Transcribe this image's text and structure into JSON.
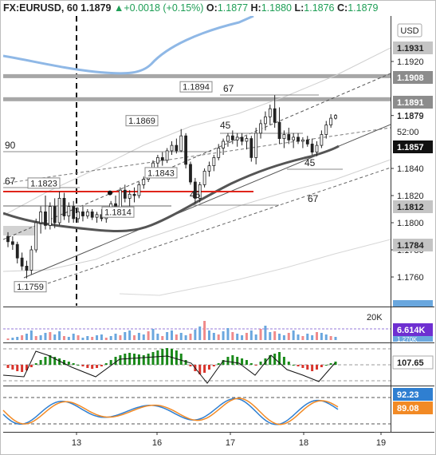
{
  "header": {
    "symbol": "FX:EURUSD, 60",
    "last": "1.1879",
    "change_arrow": "▲",
    "change": "+0.0018 (+0.15%)",
    "o_label": "O:",
    "o": "1.1877",
    "h_label": "H:",
    "h": "1.1880",
    "l_label": "L:",
    "l": "1.1876",
    "c_label": "C:",
    "c": "1.1879"
  },
  "scale_button": "USD",
  "colors": {
    "up": "#26a69a",
    "candle": "#222222",
    "ma_blue": "#8fb8e6",
    "ma_grey": "#555555",
    "red_line": "#e0251b",
    "vol_blue": "#6aa7de",
    "vol_red": "#f08a8a",
    "macd_up": "#1a8a1a",
    "macd_down": "#d8342c",
    "stoch_blue": "#2f7fd1",
    "stoch_orange": "#f28a25"
  },
  "chart_data": {
    "type": "candlestick",
    "symbol": "FX:EURUSD",
    "interval": "60",
    "ylim": [
      1.174,
      1.196
    ],
    "y_ticks": [
      "1.1760",
      "1.1780",
      "1.1800",
      "1.1820",
      "1.1840",
      "1.1879",
      "1.1920"
    ],
    "x_ticks": [
      "13",
      "16",
      "17",
      "18",
      "19"
    ],
    "price_labels": [
      {
        "text": "1.1931",
        "style": "grey"
      },
      {
        "text": "1.1908",
        "style": "dark"
      },
      {
        "text": "1.1891",
        "style": "dark"
      },
      {
        "text": "1.1879",
        "style": "plain"
      },
      {
        "text": "52:00",
        "style": "plain"
      },
      {
        "text": "1.1857",
        "style": "black"
      },
      {
        "text": "1.1812",
        "style": "grey"
      },
      {
        "text": "1.1784",
        "style": "grey"
      }
    ],
    "annotations": [
      {
        "text": "1.1894",
        "x": 226,
        "price": 1.1894
      },
      {
        "text": "1.1869",
        "x": 158,
        "price": 1.1869
      },
      {
        "text": "1.1843",
        "x": 182,
        "price": 1.1843
      },
      {
        "text": "1.1823",
        "x": 35,
        "price": 1.1823
      },
      {
        "text": "1.1814",
        "x": 128,
        "price": 1.1814
      },
      {
        "text": "1.1759",
        "x": 18,
        "price": 1.1759
      }
    ],
    "fib_labels": [
      "90",
      "67",
      "67",
      "45",
      "45",
      "45",
      "67"
    ],
    "horizontal_lines": [
      1.1908,
      1.1891,
      1.1823
    ],
    "candles": [
      [
        1.179,
        1.1793,
        1.1782,
        1.1786
      ],
      [
        1.1786,
        1.179,
        1.178,
        1.1784
      ],
      [
        1.1784,
        1.1786,
        1.177,
        1.1774
      ],
      [
        1.1774,
        1.1778,
        1.1765,
        1.1768
      ],
      [
        1.1768,
        1.1772,
        1.1759,
        1.1765
      ],
      [
        1.1765,
        1.1783,
        1.1762,
        1.178
      ],
      [
        1.178,
        1.1803,
        1.1778,
        1.18
      ],
      [
        1.18,
        1.1812,
        1.1792,
        1.1808
      ],
      [
        1.1808,
        1.182,
        1.1795,
        1.1798
      ],
      [
        1.1798,
        1.1815,
        1.1795,
        1.1812
      ],
      [
        1.1812,
        1.1818,
        1.1796,
        1.18
      ],
      [
        1.18,
        1.1823,
        1.1798,
        1.1818
      ],
      [
        1.1818,
        1.1822,
        1.1802,
        1.1805
      ],
      [
        1.1805,
        1.1815,
        1.18,
        1.1812
      ],
      [
        1.1812,
        1.1816,
        1.18,
        1.1803
      ],
      [
        1.1803,
        1.1811,
        1.18,
        1.1808
      ],
      [
        1.1808,
        1.1812,
        1.1801,
        1.1805
      ],
      [
        1.1805,
        1.181,
        1.1803,
        1.1808
      ],
      [
        1.1808,
        1.181,
        1.1802,
        1.1804
      ],
      [
        1.1804,
        1.1808,
        1.18,
        1.1806
      ],
      [
        1.1806,
        1.181,
        1.1801,
        1.1803
      ],
      [
        1.1803,
        1.1808,
        1.18,
        1.1806
      ],
      [
        1.1806,
        1.1816,
        1.1805,
        1.1814
      ],
      [
        1.1814,
        1.182,
        1.1808,
        1.1811
      ],
      [
        1.1811,
        1.1826,
        1.181,
        1.1824
      ],
      [
        1.1824,
        1.1828,
        1.1815,
        1.1818
      ],
      [
        1.1818,
        1.1824,
        1.1812,
        1.1821
      ],
      [
        1.1821,
        1.1826,
        1.1815,
        1.182
      ],
      [
        1.182,
        1.183,
        1.1818,
        1.1828
      ],
      [
        1.1828,
        1.1834,
        1.1825,
        1.1832
      ],
      [
        1.1832,
        1.184,
        1.183,
        1.1838
      ],
      [
        1.1838,
        1.1846,
        1.1835,
        1.1844
      ],
      [
        1.1844,
        1.185,
        1.184,
        1.1848
      ],
      [
        1.1848,
        1.1852,
        1.1842,
        1.1846
      ],
      [
        1.1846,
        1.1855,
        1.1844,
        1.1853
      ],
      [
        1.1853,
        1.186,
        1.185,
        1.1857
      ],
      [
        1.1857,
        1.1862,
        1.1851,
        1.1853
      ],
      [
        1.1853,
        1.1869,
        1.1852,
        1.1864
      ],
      [
        1.1864,
        1.1866,
        1.184,
        1.1843
      ],
      [
        1.1843,
        1.1845,
        1.1828,
        1.183
      ],
      [
        1.183,
        1.1833,
        1.1814,
        1.1818
      ],
      [
        1.1818,
        1.183,
        1.1815,
        1.1828
      ],
      [
        1.1828,
        1.184,
        1.1826,
        1.1838
      ],
      [
        1.1838,
        1.1845,
        1.1834,
        1.1842
      ],
      [
        1.1842,
        1.185,
        1.1838,
        1.1848
      ],
      [
        1.1848,
        1.1858,
        1.1846,
        1.1855
      ],
      [
        1.1855,
        1.1862,
        1.185,
        1.186
      ],
      [
        1.186,
        1.1866,
        1.1856,
        1.1864
      ],
      [
        1.1864,
        1.1868,
        1.1858,
        1.1861
      ],
      [
        1.1861,
        1.1866,
        1.1856,
        1.1863
      ],
      [
        1.1863,
        1.1866,
        1.1857,
        1.186
      ],
      [
        1.186,
        1.1864,
        1.1854,
        1.1862
      ],
      [
        1.1862,
        1.1864,
        1.1845,
        1.1848
      ],
      [
        1.1848,
        1.187,
        1.1843,
        1.1866
      ],
      [
        1.1866,
        1.1876,
        1.1862,
        1.1873
      ],
      [
        1.1873,
        1.1882,
        1.1868,
        1.1878
      ],
      [
        1.1878,
        1.1887,
        1.1872,
        1.1884
      ],
      [
        1.1884,
        1.1894,
        1.187,
        1.1874
      ],
      [
        1.1874,
        1.1885,
        1.1858,
        1.1862
      ],
      [
        1.1862,
        1.1868,
        1.1855,
        1.1865
      ],
      [
        1.1865,
        1.187,
        1.1858,
        1.1861
      ],
      [
        1.1861,
        1.1866,
        1.1855,
        1.1863
      ],
      [
        1.1863,
        1.1866,
        1.1858,
        1.186
      ],
      [
        1.186,
        1.1863,
        1.1855,
        1.1861
      ],
      [
        1.1861,
        1.1864,
        1.1856,
        1.1858
      ],
      [
        1.1858,
        1.1862,
        1.185,
        1.1852
      ],
      [
        1.1852,
        1.186,
        1.1849,
        1.1857
      ],
      [
        1.1857,
        1.1868,
        1.1855,
        1.1865
      ],
      [
        1.1865,
        1.1875,
        1.1862,
        1.1872
      ],
      [
        1.1872,
        1.188,
        1.187,
        1.1877
      ],
      [
        1.1877,
        1.188,
        1.1876,
        1.1879
      ]
    ],
    "volume": {
      "label_value": "6.614K",
      "label_secondary": "1.270K",
      "scale_label": "20K"
    },
    "macd": {
      "label_value": "107.65"
    },
    "stochastic": {
      "k_label": "92.23",
      "d_label": "89.08"
    }
  }
}
